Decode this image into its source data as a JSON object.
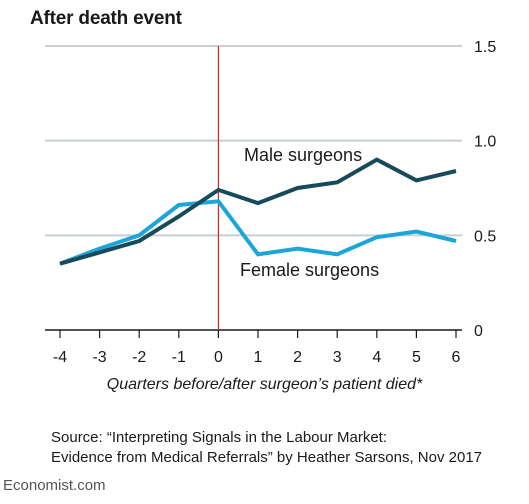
{
  "chart_data": {
    "type": "line",
    "title": "After death event",
    "xlabel": "Quarters before/after surgeon’s patient died*",
    "ylabel": "",
    "x": [
      -4,
      -3,
      -2,
      -1,
      0,
      1,
      2,
      3,
      4,
      5,
      6
    ],
    "xticks": [
      "-4",
      "-3",
      "-2",
      "-1",
      "0",
      "1",
      "2",
      "3",
      "4",
      "5",
      "6"
    ],
    "yticks": [
      "0",
      "0.5",
      "1.0",
      "1.5"
    ],
    "ylim": [
      0,
      1.5
    ],
    "xlim": [
      -4,
      6
    ],
    "grid": "horizontal",
    "event_marker_x": 0,
    "series": [
      {
        "name": "Male surgeons",
        "color": "#174a5a",
        "values": [
          0.35,
          0.41,
          0.47,
          0.6,
          0.74,
          0.67,
          0.75,
          0.78,
          0.9,
          0.79,
          0.84
        ]
      },
      {
        "name": "Female surgeons",
        "color": "#1aa7d8",
        "values": [
          0.35,
          0.43,
          0.5,
          0.66,
          0.68,
          0.4,
          0.43,
          0.4,
          0.49,
          0.52,
          0.47
        ]
      }
    ]
  },
  "source": {
    "line1": "Source: “Interpreting Signals in the Labour Market:",
    "line2": "Evidence from Medical Referrals” by Heather Sarsons, Nov 2017"
  },
  "credit": "Economist.com"
}
